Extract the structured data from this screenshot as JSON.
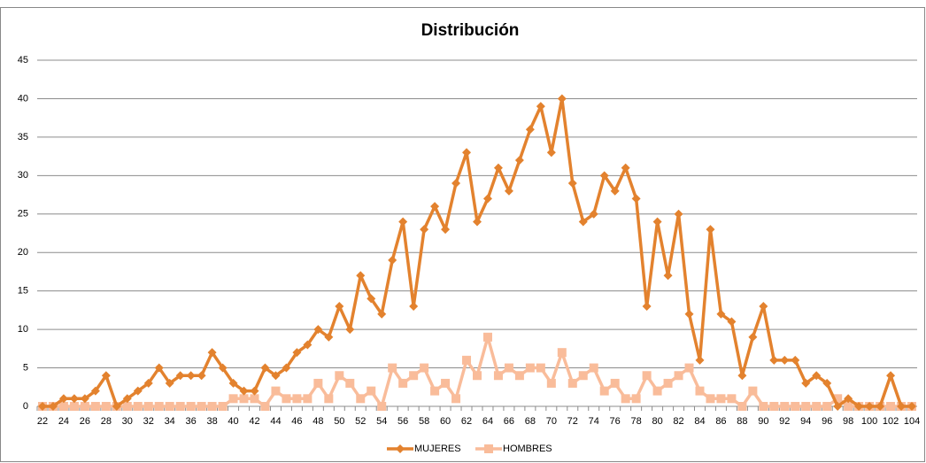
{
  "chart_data": {
    "type": "line",
    "title": "Distribución",
    "categories": [
      "22",
      null,
      "24",
      null,
      "26",
      null,
      "28",
      null,
      "30",
      null,
      "32",
      null,
      "34",
      null,
      "36",
      null,
      "38",
      null,
      "40",
      null,
      "42",
      null,
      "44",
      null,
      "46",
      null,
      "48",
      null,
      "50",
      null,
      "52",
      null,
      "54",
      null,
      "56",
      null,
      "58",
      null,
      "60",
      null,
      "62",
      null,
      "64",
      null,
      "66",
      null,
      "68",
      null,
      "70",
      null,
      "72",
      null,
      "74",
      null,
      "76",
      null,
      "78",
      null,
      "80",
      null,
      "82",
      null,
      "84",
      null,
      "86",
      null,
      "88",
      null,
      "90",
      null,
      "92",
      null,
      "94",
      null,
      "96",
      null,
      "98",
      null,
      "100",
      null,
      "102",
      null,
      "104"
    ],
    "series": [
      {
        "name": "MUJERES",
        "color": "#e3822e",
        "marker": "diamond",
        "values": [
          0,
          0,
          1,
          1,
          1,
          2,
          4,
          0,
          1,
          2,
          3,
          5,
          3,
          4,
          4,
          4,
          7,
          5,
          3,
          2,
          2,
          5,
          4,
          5,
          7,
          8,
          10,
          9,
          13,
          10,
          17,
          14,
          12,
          19,
          24,
          13,
          23,
          26,
          23,
          29,
          33,
          24,
          27,
          31,
          28,
          32,
          36,
          39,
          33,
          40,
          29,
          24,
          25,
          30,
          28,
          31,
          27,
          13,
          24,
          17,
          25,
          12,
          6,
          23,
          12,
          11,
          4,
          9,
          13,
          6,
          6,
          6,
          3,
          4,
          3,
          0,
          1,
          0,
          0,
          0,
          4,
          0,
          0
        ]
      },
      {
        "name": "HOMBRES",
        "color": "#f9bc9a",
        "marker": "square",
        "values": [
          0,
          0,
          0,
          0,
          0,
          0,
          0,
          0,
          0,
          0,
          0,
          0,
          0,
          0,
          0,
          0,
          0,
          0,
          1,
          1,
          1,
          0,
          2,
          1,
          1,
          1,
          3,
          1,
          4,
          3,
          1,
          2,
          0,
          5,
          3,
          4,
          5,
          2,
          3,
          1,
          6,
          4,
          9,
          4,
          5,
          4,
          5,
          5,
          3,
          7,
          3,
          4,
          5,
          2,
          3,
          1,
          1,
          4,
          2,
          3,
          4,
          5,
          2,
          1,
          1,
          1,
          0,
          2,
          0,
          0,
          0,
          0,
          0,
          0,
          0,
          1,
          0,
          0,
          0,
          0,
          0,
          0,
          0
        ]
      }
    ],
    "ylim": [
      0,
      45
    ],
    "yticks": [
      0,
      5,
      10,
      15,
      20,
      25,
      30,
      35,
      40,
      45
    ],
    "grid": true,
    "legend": "bottom"
  }
}
